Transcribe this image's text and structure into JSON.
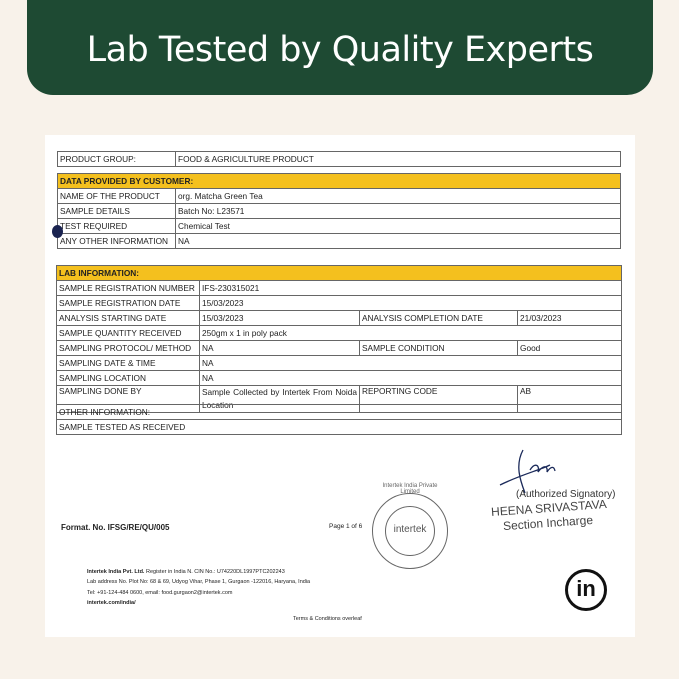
{
  "banner": {
    "title": "Lab Tested by Quality Experts"
  },
  "product_group": {
    "label": "PRODUCT GROUP:",
    "value": "FOOD & AGRICULTURE PRODUCT"
  },
  "customer": {
    "header": "DATA PROVIDED BY CUSTOMER:",
    "rows": [
      {
        "label": "NAME OF THE PRODUCT",
        "value": "org. Matcha Green Tea"
      },
      {
        "label": "SAMPLE DETAILS",
        "value": "Batch No:  L23571"
      },
      {
        "label": "TEST REQUIRED",
        "value": "Chemical Test"
      },
      {
        "label": "ANY OTHER INFORMATION",
        "value": "NA"
      }
    ]
  },
  "lab": {
    "header": "LAB INFORMATION:",
    "rows": [
      {
        "label": "SAMPLE REGISTRATION NUMBER",
        "value": "IFS-230315021"
      },
      {
        "label": "SAMPLE REGISTRATION DATE",
        "value": "15/03/2023"
      },
      {
        "label": "ANALYSIS STARTING DATE",
        "value": "15/03/2023",
        "label2": "ANALYSIS COMPLETION DATE",
        "value2": "21/03/2023"
      },
      {
        "label": "SAMPLE QUANTITY RECEIVED",
        "value": "250gm x 1 in poly pack"
      },
      {
        "label": "SAMPLING PROTOCOL/ METHOD",
        "value": "NA",
        "label2": "SAMPLE CONDITION",
        "value2": "Good"
      },
      {
        "label": "SAMPLING DATE & TIME",
        "value": "NA"
      },
      {
        "label": "SAMPLING LOCATION",
        "value": "NA"
      },
      {
        "label": "SAMPLING DONE BY",
        "value": "Sample Collected by Intertek From Noida Location",
        "label2": "REPORTING CODE",
        "value2": "AB"
      }
    ]
  },
  "other": {
    "label": "OTHER INFORMATION:",
    "value": "SAMPLE TESTED AS RECEIVED"
  },
  "footer": {
    "format": "Format. No. IFSG/RE/QU/005",
    "page": "Page 1 of 6",
    "company_line": "Intertek India Pvt. Ltd.",
    "register": " Register in India N. CIN No.: U74220DL1997PTC202243",
    "address": "Lab address No. Plot No: 68 & 69, Udyog Vihar, Phase 1, Gurgaon -122016, Haryana, India",
    "tel": "Tel:  +91-124-484 0600, email: food.gurgaon2@intertek.com",
    "web": "intertek.com/india/",
    "terms": "Terms & Conditions overleaf"
  },
  "signature": {
    "role": "(Authorized Signatory)",
    "name": "HEENA SRIVASTAVA",
    "title": "Section Incharge"
  },
  "stamp": {
    "ring": "Intertek India Private Limited",
    "center": "intertek"
  },
  "logo": {
    "text": "in"
  }
}
